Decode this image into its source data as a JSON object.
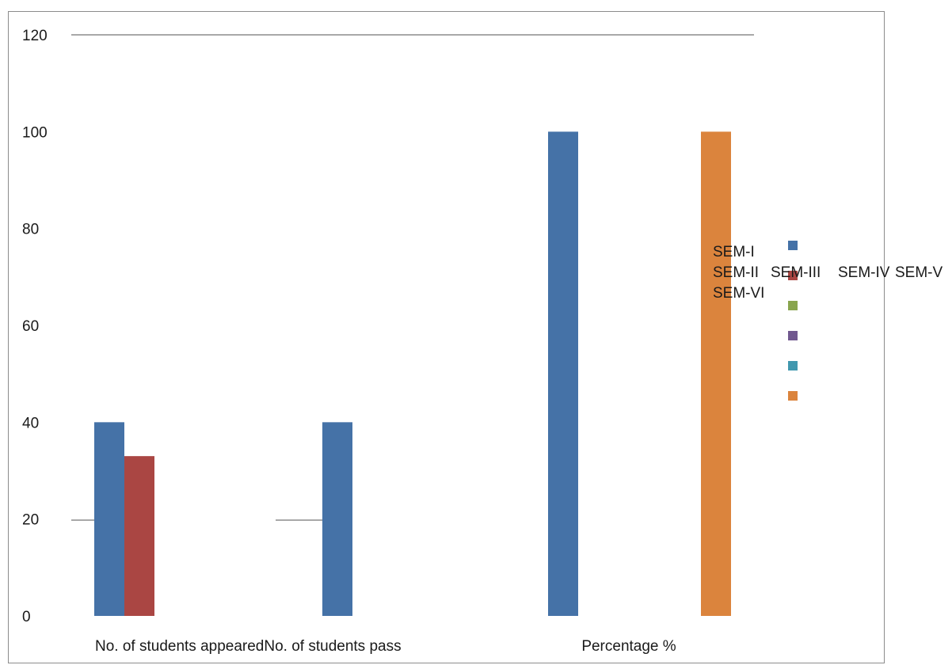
{
  "chart_data": {
    "type": "bar",
    "title": "",
    "xlabel": "",
    "ylabel": "",
    "ylim": [
      0,
      120
    ],
    "yticks": [
      0,
      20,
      40,
      60,
      80,
      100,
      120
    ],
    "categories": [
      "No. of students appeared",
      "No. of students pass",
      "Percentage %"
    ],
    "series": [
      {
        "name": "SEM-I",
        "color": "#4572a7",
        "values": [
          40,
          40,
          100
        ]
      },
      {
        "name": "SEM-II",
        "color": "#aa4643",
        "values": [
          33,
          0,
          0
        ]
      },
      {
        "name": "SEM-III",
        "color": "#89a54e",
        "values": [
          0,
          0,
          0
        ]
      },
      {
        "name": "SEM-IV",
        "color": "#71588f",
        "values": [
          0,
          0,
          0
        ]
      },
      {
        "name": "SEM-V",
        "color": "#4198af",
        "values": [
          0,
          0,
          0
        ]
      },
      {
        "name": "SEM-VI",
        "color": "#db843d",
        "values": [
          0,
          0,
          100
        ]
      }
    ],
    "grid": false,
    "legend_position": "right"
  }
}
